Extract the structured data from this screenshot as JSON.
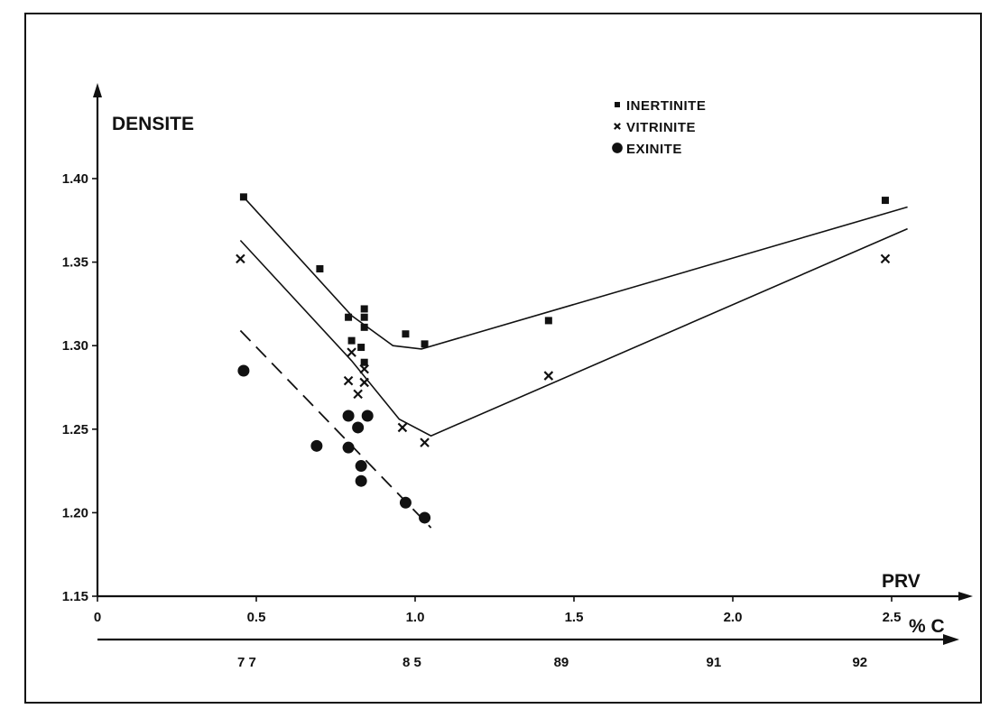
{
  "chart_data": {
    "type": "scatter",
    "title": "",
    "ylabel": "DENSITE",
    "xlabel": "PRV",
    "secondary_xlabel": "% C",
    "xlim": [
      0,
      2.6
    ],
    "ylim": [
      1.15,
      1.45
    ],
    "x_ticks": [
      {
        "value": 0,
        "label": "0"
      },
      {
        "value": 0.5,
        "label": "0.5"
      },
      {
        "value": 1.0,
        "label": "1.0"
      },
      {
        "value": 1.5,
        "label": "1.5"
      },
      {
        "value": 2.0,
        "label": "2.0"
      },
      {
        "value": 2.5,
        "label": "2.5"
      }
    ],
    "y_ticks": [
      {
        "value": 1.15,
        "label": "1.15"
      },
      {
        "value": 1.2,
        "label": "1.20"
      },
      {
        "value": 1.25,
        "label": "1.25"
      },
      {
        "value": 1.3,
        "label": "1.30"
      },
      {
        "value": 1.35,
        "label": "1.35"
      },
      {
        "value": 1.4,
        "label": "1.40"
      }
    ],
    "secondary_x_ticks": [
      {
        "prv": 0.47,
        "label": "7 7"
      },
      {
        "prv": 0.99,
        "label": "8 5"
      },
      {
        "prv": 1.46,
        "label": "89"
      },
      {
        "prv": 1.94,
        "label": "91"
      },
      {
        "prv": 2.4,
        "label": "92"
      }
    ],
    "legend_position": "top-center",
    "grid": false,
    "series": [
      {
        "name": "INERTINITE",
        "marker": "square",
        "points": [
          [
            0.46,
            1.389
          ],
          [
            0.7,
            1.346
          ],
          [
            0.79,
            1.317
          ],
          [
            0.8,
            1.303
          ],
          [
            0.83,
            1.299
          ],
          [
            0.84,
            1.322
          ],
          [
            0.84,
            1.317
          ],
          [
            0.84,
            1.311
          ],
          [
            0.84,
            1.29
          ],
          [
            0.97,
            1.307
          ],
          [
            1.03,
            1.301
          ],
          [
            1.42,
            1.315
          ],
          [
            2.48,
            1.387
          ]
        ]
      },
      {
        "name": "VITRINITE",
        "marker": "x",
        "points": [
          [
            0.45,
            1.352
          ],
          [
            0.79,
            1.279
          ],
          [
            0.8,
            1.296
          ],
          [
            0.82,
            1.271
          ],
          [
            0.84,
            1.286
          ],
          [
            0.84,
            1.278
          ],
          [
            0.96,
            1.251
          ],
          [
            1.03,
            1.242
          ],
          [
            1.42,
            1.282
          ],
          [
            2.48,
            1.352
          ]
        ]
      },
      {
        "name": "EXINITE",
        "marker": "circle",
        "points": [
          [
            0.46,
            1.285
          ],
          [
            0.69,
            1.24
          ],
          [
            0.79,
            1.258
          ],
          [
            0.79,
            1.239
          ],
          [
            0.82,
            1.251
          ],
          [
            0.83,
            1.228
          ],
          [
            0.83,
            1.219
          ],
          [
            0.85,
            1.258
          ],
          [
            0.97,
            1.206
          ],
          [
            1.03,
            1.197
          ]
        ]
      }
    ],
    "fit_lines": [
      {
        "name": "INERTINITE",
        "style": "solid",
        "points": [
          [
            0.46,
            1.389
          ],
          [
            0.8,
            1.318
          ],
          [
            0.93,
            1.3
          ],
          [
            1.02,
            1.298
          ],
          [
            2.55,
            1.383
          ]
        ]
      },
      {
        "name": "VITRINITE",
        "style": "solid",
        "points": [
          [
            0.45,
            1.363
          ],
          [
            0.8,
            1.291
          ],
          [
            0.95,
            1.256
          ],
          [
            1.05,
            1.246
          ],
          [
            2.55,
            1.37
          ]
        ]
      },
      {
        "name": "EXINITE",
        "style": "dashed",
        "points": [
          [
            0.45,
            1.309
          ],
          [
            1.05,
            1.191
          ]
        ]
      }
    ]
  }
}
